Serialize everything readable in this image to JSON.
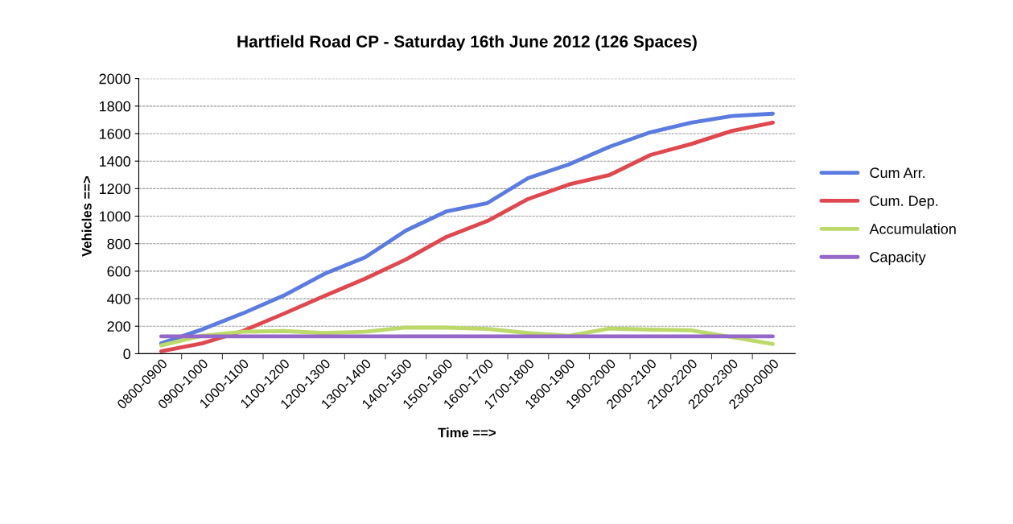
{
  "chart_data": {
    "type": "line",
    "title": "Hartfield Road CP - Saturday 16th June 2012 (126 Spaces)",
    "xlabel": "Time ==>",
    "ylabel": "Vehicles ==>",
    "categories": [
      "0800-0900",
      "0900-1000",
      "1000-1100",
      "1100-1200",
      "1200-1300",
      "1300-1400",
      "1400-1500",
      "1500-1600",
      "1600-1700",
      "1700-1800",
      "1800-1900",
      "1900-2000",
      "2000-2100",
      "2100-2200",
      "2200-2300",
      "2300-0000"
    ],
    "series": [
      {
        "name": "Cum Arr.",
        "color": "#5b7be0",
        "values": [
          75,
          176,
          293,
          422,
          580,
          700,
          895,
          1035,
          1095,
          1277,
          1376,
          1505,
          1610,
          1680,
          1728,
          1745
        ]
      },
      {
        "name": "Cum. Dep.",
        "color": "#e0484f",
        "values": [
          18,
          75,
          165,
          290,
          420,
          545,
          685,
          850,
          965,
          1125,
          1230,
          1300,
          1445,
          1525,
          1620,
          1680
        ]
      },
      {
        "name": "Accumulation",
        "color": "#bcd96a",
        "values": [
          60,
          130,
          160,
          165,
          150,
          160,
          190,
          190,
          180,
          150,
          130,
          183,
          175,
          170,
          120,
          70
        ]
      },
      {
        "name": "Capacity",
        "color": "#9467c8",
        "values": [
          126,
          126,
          126,
          126,
          126,
          126,
          126,
          126,
          126,
          126,
          126,
          126,
          126,
          126,
          126,
          126
        ]
      }
    ],
    "ylim": [
      0,
      2000
    ],
    "yticks": [
      0,
      200,
      400,
      600,
      800,
      1000,
      1200,
      1400,
      1600,
      1800,
      2000
    ],
    "grid": "y",
    "legend": "right",
    "marker": "none",
    "line_style": "solid"
  }
}
